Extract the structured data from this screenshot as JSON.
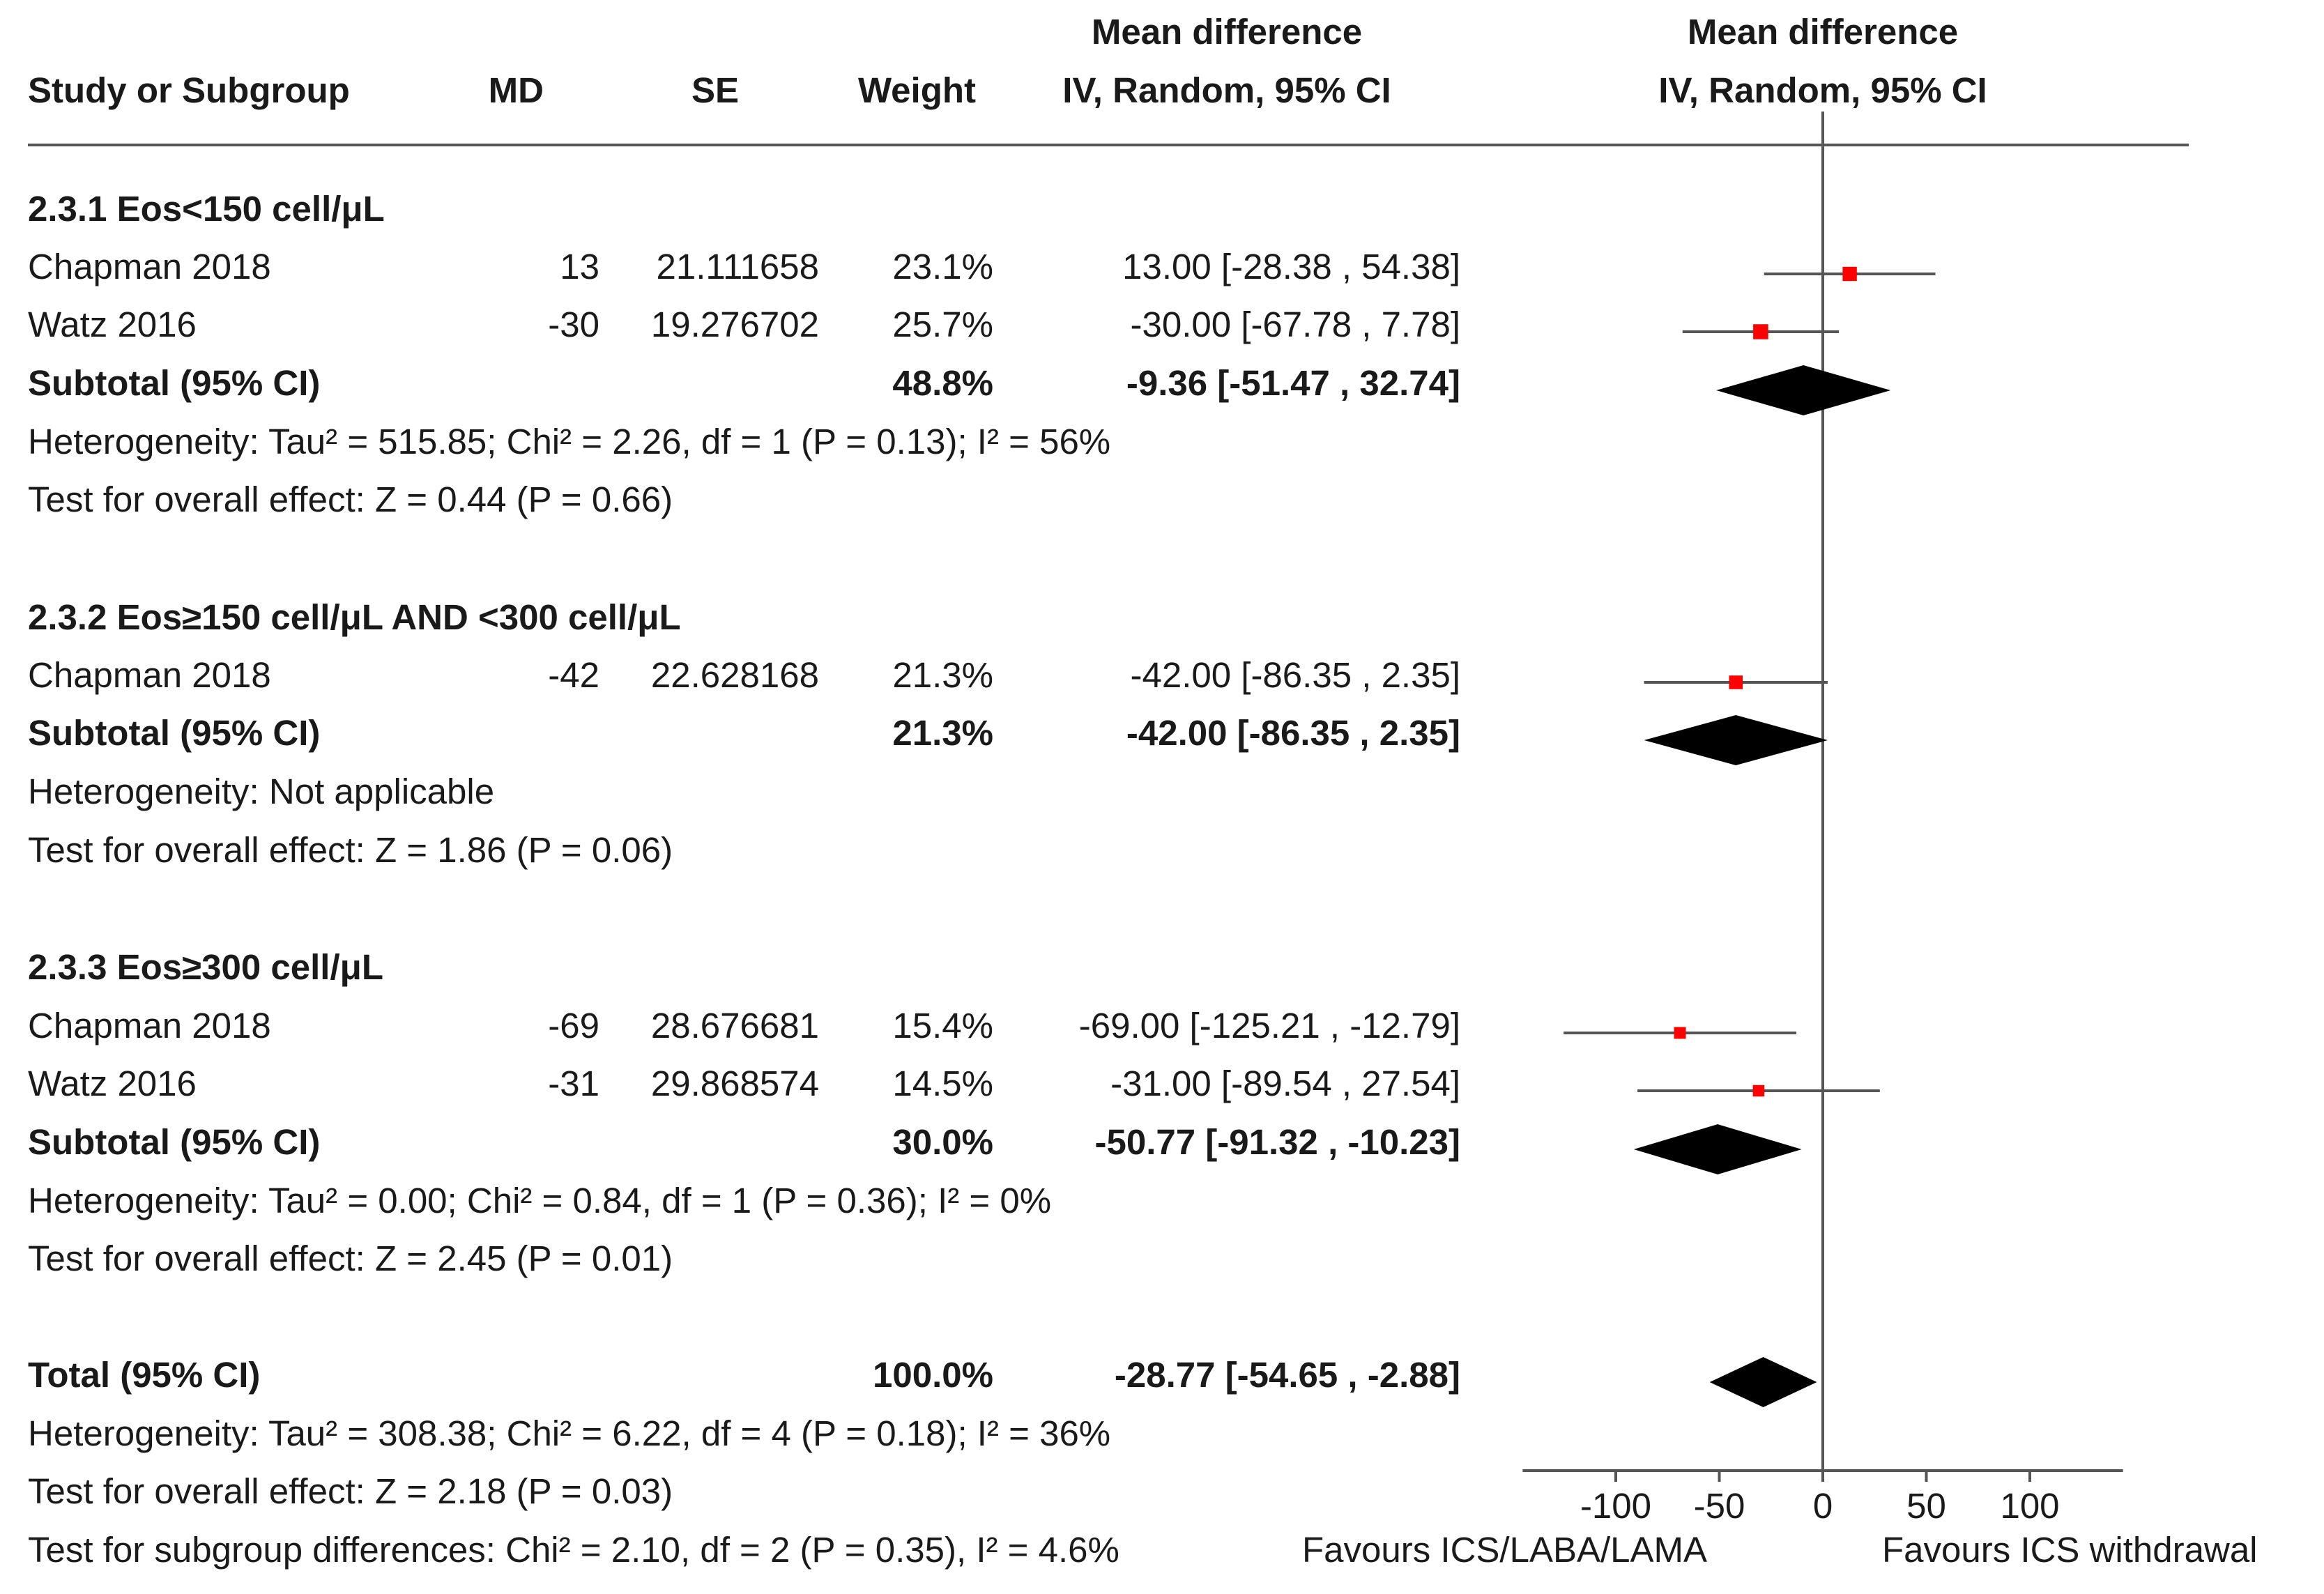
{
  "header": {
    "study": "Study or Subgroup",
    "md": "MD",
    "se": "SE",
    "weight": "Weight",
    "effect_line1": "Mean difference",
    "effect_line2": "IV, Random, 95% CI",
    "plot_line1": "Mean difference",
    "plot_line2": "IV, Random, 95% CI"
  },
  "colors": {
    "marker": "#ff0000",
    "diamond": "#000000",
    "axis": "#555555"
  },
  "groups": [
    {
      "title": "2.3.1 Eos<150 cell/μL",
      "studies": [
        {
          "name": "Chapman 2018",
          "md": "13",
          "se": "21.111658",
          "weight": "23.1%",
          "ci": "13.00 [-28.38 , 54.38]"
        },
        {
          "name": "Watz 2016",
          "md": "-30",
          "se": "19.276702",
          "weight": "25.7%",
          "ci": "-30.00 [-67.78 , 7.78]"
        }
      ],
      "subtotal": {
        "label": "Subtotal (95% CI)",
        "weight": "48.8%",
        "ci": "-9.36 [-51.47 , 32.74]"
      },
      "heterogeneity": "Heterogeneity: Tau² = 515.85; Chi² = 2.26, df = 1 (P = 0.13); I² = 56%",
      "overall": "Test for overall effect: Z = 0.44 (P = 0.66)"
    },
    {
      "title": "2.3.2 Eos≥150 cell/μL AND <300 cell/μL",
      "studies": [
        {
          "name": "Chapman 2018",
          "md": "-42",
          "se": "22.628168",
          "weight": "21.3%",
          "ci": "-42.00 [-86.35 , 2.35]"
        }
      ],
      "subtotal": {
        "label": "Subtotal (95% CI)",
        "weight": "21.3%",
        "ci": "-42.00 [-86.35 , 2.35]"
      },
      "heterogeneity": "Heterogeneity: Not applicable",
      "overall": "Test for overall effect: Z = 1.86 (P = 0.06)"
    },
    {
      "title": "2.3.3 Eos≥300 cell/μL",
      "studies": [
        {
          "name": "Chapman 2018",
          "md": "-69",
          "se": "28.676681",
          "weight": "15.4%",
          "ci": "-69.00 [-125.21 , -12.79]"
        },
        {
          "name": "Watz 2016",
          "md": "-31",
          "se": "29.868574",
          "weight": "14.5%",
          "ci": "-31.00 [-89.54 , 27.54]"
        }
      ],
      "subtotal": {
        "label": "Subtotal (95% CI)",
        "weight": "30.0%",
        "ci": "-50.77 [-91.32 , -10.23]"
      },
      "heterogeneity": "Heterogeneity: Tau² = 0.00; Chi² = 0.84, df = 1 (P = 0.36); I² = 0%",
      "overall": "Test for overall effect: Z = 2.45 (P = 0.01)"
    }
  ],
  "total": {
    "label": "Total (95% CI)",
    "weight": "100.0%",
    "ci": "-28.77 [-54.65 , -2.88]",
    "heterogeneity": "Heterogeneity: Tau² = 308.38; Chi² = 6.22, df = 4 (P = 0.18); I² = 36%",
    "overall": "Test for overall effect: Z = 2.18 (P = 0.03)",
    "subgroup_diff": "Test for subgroup differences: Chi² = 2.10, df = 2 (P = 0.35), I² = 4.6%"
  },
  "axis": {
    "ticks": [
      -100,
      -50,
      0,
      50,
      100
    ],
    "tick_labels": [
      "-100",
      "-50",
      "0",
      "50",
      "100"
    ],
    "favours_left": "Favours ICS/LABA/LAMA",
    "favours_right": "Favours ICS withdrawal"
  },
  "chart_data": {
    "type": "forest",
    "xlim": [
      -145,
      145
    ],
    "x_axis_range": [
      -145,
      145
    ],
    "studies": [
      {
        "group": 0,
        "name": "Chapman 2018",
        "md": 13,
        "lo": -28.38,
        "hi": 54.38,
        "weight": 23.1
      },
      {
        "group": 0,
        "name": "Watz 2016",
        "md": -30,
        "lo": -67.78,
        "hi": 7.78,
        "weight": 25.7
      },
      {
        "group": 1,
        "name": "Chapman 2018",
        "md": -42,
        "lo": -86.35,
        "hi": 2.35,
        "weight": 21.3
      },
      {
        "group": 2,
        "name": "Chapman 2018",
        "md": -69,
        "lo": -125.21,
        "hi": -12.79,
        "weight": 15.4
      },
      {
        "group": 2,
        "name": "Watz 2016",
        "md": -31,
        "lo": -89.54,
        "hi": 27.54,
        "weight": 14.5
      }
    ],
    "subtotals": [
      {
        "group": 0,
        "md": -9.36,
        "lo": -51.47,
        "hi": 32.74
      },
      {
        "group": 1,
        "md": -42.0,
        "lo": -86.35,
        "hi": 2.35
      },
      {
        "group": 2,
        "md": -50.77,
        "lo": -91.32,
        "hi": -10.23
      }
    ],
    "overall": {
      "md": -28.77,
      "lo": -54.65,
      "hi": -2.88
    }
  }
}
